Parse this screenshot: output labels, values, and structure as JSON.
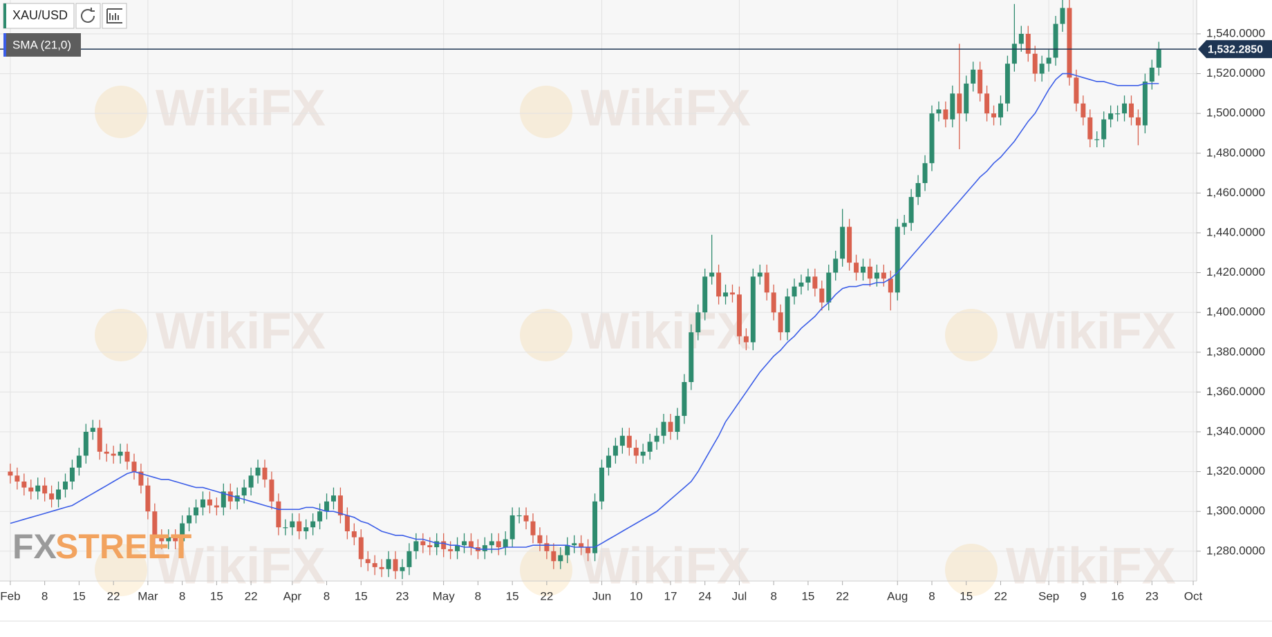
{
  "chart_data": {
    "type": "candlestick",
    "title": "XAU/USD",
    "watermark": "WikiFX",
    "logo": [
      "FX",
      "STREET"
    ],
    "up_color": "#2e8b6e",
    "down_color": "#d9614e",
    "open": [
      1320,
      1318,
      1315,
      1312,
      1310,
      1313,
      1309,
      1306,
      1311,
      1315,
      1322,
      1328,
      1340,
      1342,
      1330,
      1329,
      1328,
      1330,
      1325,
      1320,
      1313,
      1300,
      1287,
      1285,
      1287,
      1285,
      1294,
      1298,
      1302,
      1306,
      1303,
      1302,
      1310,
      1305,
      1308,
      1312,
      1318,
      1322,
      1316,
      1305,
      1292,
      1292,
      1295,
      1290,
      1292,
      1295,
      1300,
      1305,
      1308,
      1298,
      1290,
      1287,
      1276,
      1274,
      1272,
      1271,
      1276,
      1270,
      1272,
      1280,
      1285,
      1283,
      1282,
      1285,
      1281,
      1280,
      1283,
      1285,
      1282,
      1280,
      1283,
      1285,
      1282,
      1286,
      1298,
      1298,
      1295,
      1288,
      1284,
      1280,
      1275,
      1278,
      1283,
      1284,
      1282,
      1279,
      1305,
      1322,
      1328,
      1333,
      1338,
      1332,
      1328,
      1330,
      1335,
      1338,
      1345,
      1340,
      1348,
      1365,
      1390,
      1400,
      1418,
      1420,
      1408,
      1410,
      1409,
      1388,
      1385,
      1418,
      1420,
      1410,
      1400,
      1390,
      1408,
      1413,
      1415,
      1418,
      1412,
      1405,
      1420,
      1427,
      1443,
      1425,
      1420,
      1423,
      1417,
      1420,
      1417,
      1410,
      1443,
      1445,
      1458,
      1465,
      1475,
      1500,
      1502,
      1497,
      1510,
      1500,
      1515,
      1522,
      1510,
      1500,
      1498,
      1505,
      1525,
      1535,
      1540,
      1530,
      1520,
      1525,
      1528,
      1545,
      1553,
      1518,
      1505,
      1498,
      1487,
      1487,
      1497,
      1500,
      1500,
      1505,
      1498,
      1494,
      1516,
      1523
    ],
    "high": [
      1324,
      1322,
      1319,
      1316,
      1317,
      1317,
      1313,
      1315,
      1319,
      1326,
      1332,
      1344,
      1346,
      1346,
      1334,
      1333,
      1334,
      1334,
      1329,
      1324,
      1317,
      1304,
      1291,
      1291,
      1291,
      1298,
      1302,
      1306,
      1310,
      1310,
      1307,
      1314,
      1314,
      1312,
      1316,
      1322,
      1326,
      1326,
      1320,
      1309,
      1296,
      1299,
      1299,
      1296,
      1299,
      1304,
      1309,
      1312,
      1312,
      1302,
      1294,
      1291,
      1280,
      1278,
      1276,
      1280,
      1280,
      1276,
      1284,
      1289,
      1289,
      1287,
      1289,
      1289,
      1285,
      1287,
      1289,
      1289,
      1286,
      1287,
      1289,
      1289,
      1290,
      1302,
      1302,
      1302,
      1299,
      1292,
      1288,
      1284,
      1282,
      1287,
      1288,
      1288,
      1286,
      1309,
      1326,
      1332,
      1337,
      1342,
      1342,
      1336,
      1334,
      1339,
      1342,
      1349,
      1349,
      1352,
      1369,
      1394,
      1404,
      1422,
      1439,
      1424,
      1414,
      1414,
      1413,
      1392,
      1422,
      1424,
      1424,
      1414,
      1404,
      1412,
      1417,
      1419,
      1422,
      1422,
      1416,
      1424,
      1431,
      1452,
      1447,
      1429,
      1427,
      1427,
      1424,
      1424,
      1421,
      1447,
      1449,
      1462,
      1469,
      1479,
      1504,
      1506,
      1506,
      1514,
      1535,
      1519,
      1526,
      1526,
      1514,
      1504,
      1509,
      1529,
      1555,
      1544,
      1544,
      1534,
      1529,
      1532,
      1549,
      1557,
      1557,
      1522,
      1509,
      1502,
      1491,
      1501,
      1504,
      1504,
      1509,
      1509,
      1502,
      1520,
      1527,
      1536
    ],
    "low": [
      1314,
      1311,
      1308,
      1306,
      1306,
      1305,
      1302,
      1302,
      1307,
      1311,
      1318,
      1324,
      1336,
      1326,
      1325,
      1324,
      1324,
      1321,
      1316,
      1309,
      1296,
      1283,
      1281,
      1281,
      1281,
      1281,
      1290,
      1294,
      1298,
      1299,
      1298,
      1298,
      1301,
      1301,
      1304,
      1308,
      1314,
      1312,
      1301,
      1288,
      1288,
      1288,
      1286,
      1286,
      1288,
      1291,
      1296,
      1301,
      1294,
      1286,
      1283,
      1272,
      1270,
      1268,
      1267,
      1267,
      1266,
      1266,
      1268,
      1276,
      1279,
      1278,
      1278,
      1277,
      1276,
      1276,
      1279,
      1278,
      1276,
      1276,
      1279,
      1278,
      1278,
      1282,
      1294,
      1291,
      1284,
      1280,
      1276,
      1271,
      1271,
      1274,
      1279,
      1278,
      1275,
      1275,
      1301,
      1318,
      1324,
      1329,
      1328,
      1324,
      1324,
      1326,
      1331,
      1334,
      1336,
      1336,
      1344,
      1361,
      1386,
      1396,
      1414,
      1404,
      1404,
      1405,
      1384,
      1381,
      1381,
      1414,
      1406,
      1396,
      1386,
      1386,
      1404,
      1409,
      1411,
      1408,
      1401,
      1401,
      1416,
      1423,
      1421,
      1416,
      1416,
      1413,
      1413,
      1413,
      1401,
      1406,
      1439,
      1441,
      1454,
      1461,
      1471,
      1496,
      1493,
      1493,
      1482,
      1496,
      1511,
      1506,
      1496,
      1494,
      1494,
      1501,
      1521,
      1531,
      1526,
      1516,
      1516,
      1521,
      1524,
      1541,
      1514,
      1501,
      1494,
      1483,
      1483,
      1483,
      1493,
      1496,
      1496,
      1494,
      1484,
      1490,
      1512,
      1519
    ],
    "close": [
      1318,
      1315,
      1312,
      1310,
      1313,
      1309,
      1306,
      1311,
      1315,
      1322,
      1328,
      1340,
      1342,
      1330,
      1329,
      1328,
      1330,
      1325,
      1320,
      1313,
      1300,
      1287,
      1285,
      1287,
      1285,
      1294,
      1298,
      1302,
      1306,
      1303,
      1302,
      1310,
      1305,
      1308,
      1312,
      1318,
      1322,
      1316,
      1305,
      1292,
      1292,
      1295,
      1290,
      1292,
      1295,
      1300,
      1305,
      1308,
      1298,
      1290,
      1287,
      1276,
      1274,
      1272,
      1271,
      1276,
      1270,
      1272,
      1280,
      1285,
      1283,
      1282,
      1285,
      1281,
      1280,
      1283,
      1285,
      1282,
      1280,
      1283,
      1285,
      1282,
      1286,
      1298,
      1298,
      1295,
      1288,
      1284,
      1280,
      1275,
      1278,
      1283,
      1284,
      1282,
      1279,
      1305,
      1322,
      1328,
      1333,
      1338,
      1332,
      1328,
      1330,
      1335,
      1338,
      1345,
      1340,
      1348,
      1365,
      1390,
      1400,
      1418,
      1420,
      1408,
      1410,
      1409,
      1388,
      1385,
      1418,
      1420,
      1410,
      1400,
      1390,
      1408,
      1413,
      1415,
      1418,
      1412,
      1405,
      1420,
      1427,
      1443,
      1425,
      1420,
      1423,
      1417,
      1420,
      1417,
      1410,
      1443,
      1445,
      1458,
      1465,
      1475,
      1500,
      1502,
      1497,
      1510,
      1500,
      1515,
      1522,
      1510,
      1500,
      1498,
      1505,
      1525,
      1535,
      1540,
      1530,
      1520,
      1525,
      1528,
      1545,
      1553,
      1518,
      1505,
      1498,
      1487,
      1487,
      1497,
      1500,
      1500,
      1505,
      1498,
      1494,
      1516,
      1523,
      1532.285
    ],
    "sma": {
      "name": "SMA (21,0)",
      "color": "#3b5de7",
      "values": [
        1294,
        1295,
        1296,
        1297,
        1298,
        1299,
        1300,
        1301,
        1302,
        1303,
        1305,
        1307,
        1309,
        1311,
        1313,
        1315,
        1317,
        1319,
        1320,
        1319,
        1318,
        1317,
        1316,
        1316,
        1315,
        1314,
        1313,
        1312,
        1312,
        1311,
        1310,
        1309,
        1308,
        1307,
        1306,
        1305,
        1304,
        1303,
        1302,
        1301,
        1301,
        1301,
        1301,
        1302,
        1302,
        1301,
        1300,
        1300,
        1299,
        1298,
        1297,
        1295,
        1294,
        1292,
        1290,
        1289,
        1288,
        1288,
        1287,
        1286,
        1286,
        1285,
        1284,
        1284,
        1283,
        1283,
        1282,
        1282,
        1281,
        1281,
        1281,
        1281,
        1282,
        1282,
        1282,
        1282,
        1283,
        1283,
        1283,
        1283,
        1283,
        1283,
        1282,
        1282,
        1282,
        1282,
        1284,
        1286,
        1288,
        1290,
        1292,
        1294,
        1296,
        1298,
        1300,
        1303,
        1306,
        1309,
        1312,
        1315,
        1320,
        1326,
        1332,
        1338,
        1345,
        1350,
        1355,
        1360,
        1365,
        1370,
        1374,
        1378,
        1381,
        1385,
        1388,
        1392,
        1395,
        1398,
        1402,
        1405,
        1409,
        1412,
        1413,
        1413,
        1414,
        1414,
        1415,
        1415,
        1417,
        1420,
        1424,
        1428,
        1432,
        1436,
        1440,
        1444,
        1448,
        1452,
        1456,
        1460,
        1464,
        1468,
        1471,
        1475,
        1478,
        1482,
        1486,
        1491,
        1496,
        1500,
        1506,
        1512,
        1517,
        1520,
        1520,
        1519,
        1518,
        1517,
        1516,
        1516,
        1515,
        1514,
        1514,
        1514,
        1514,
        1515,
        1515,
        1515
      ]
    },
    "price": {
      "value": 1532.285,
      "label": "1,532.2850",
      "color": "#1e3553"
    },
    "xlim": [
      -1.5,
      172.5
    ],
    "ylim": [
      1265,
      1557
    ],
    "xticks": [
      {
        "value": 0,
        "label": "Feb"
      },
      {
        "value": 5,
        "label": "8"
      },
      {
        "value": 10,
        "label": "15"
      },
      {
        "value": 15,
        "label": "22"
      },
      {
        "value": 20,
        "label": "Mar"
      },
      {
        "value": 25,
        "label": "8"
      },
      {
        "value": 30,
        "label": "15"
      },
      {
        "value": 35,
        "label": "22"
      },
      {
        "value": 41,
        "label": "Apr"
      },
      {
        "value": 46,
        "label": "8"
      },
      {
        "value": 51,
        "label": "15"
      },
      {
        "value": 57,
        "label": "23"
      },
      {
        "value": 63,
        "label": "May"
      },
      {
        "value": 68,
        "label": "8"
      },
      {
        "value": 73,
        "label": "15"
      },
      {
        "value": 78,
        "label": "22"
      },
      {
        "value": 86,
        "label": "Jun"
      },
      {
        "value": 91,
        "label": "10"
      },
      {
        "value": 96,
        "label": "17"
      },
      {
        "value": 101,
        "label": "24"
      },
      {
        "value": 106,
        "label": "Jul"
      },
      {
        "value": 111,
        "label": "8"
      },
      {
        "value": 116,
        "label": "15"
      },
      {
        "value": 121,
        "label": "22"
      },
      {
        "value": 129,
        "label": "Aug"
      },
      {
        "value": 134,
        "label": "8"
      },
      {
        "value": 139,
        "label": "15"
      },
      {
        "value": 144,
        "label": "22"
      },
      {
        "value": 151,
        "label": "Sep"
      },
      {
        "value": 156,
        "label": "9"
      },
      {
        "value": 161,
        "label": "16"
      },
      {
        "value": 166,
        "label": "23"
      },
      {
        "value": 172,
        "label": "Oct"
      }
    ],
    "yticks": [
      {
        "value": 1280,
        "label": "1,280.0000"
      },
      {
        "value": 1300,
        "label": "1,300.0000"
      },
      {
        "value": 1320,
        "label": "1,320.0000"
      },
      {
        "value": 1340,
        "label": "1,340.0000"
      },
      {
        "value": 1360,
        "label": "1,360.0000"
      },
      {
        "value": 1380,
        "label": "1,380.0000"
      },
      {
        "value": 1400,
        "label": "1,400.0000"
      },
      {
        "value": 1420,
        "label": "1,420.0000"
      },
      {
        "value": 1440,
        "label": "1,440.0000"
      },
      {
        "value": 1460,
        "label": "1,460.0000"
      },
      {
        "value": 1480,
        "label": "1,480.0000"
      },
      {
        "value": 1500,
        "label": "1,500.0000"
      },
      {
        "value": 1520,
        "label": "1,520.0000"
      },
      {
        "value": 1540,
        "label": "1,540.0000"
      }
    ],
    "grid": true
  }
}
